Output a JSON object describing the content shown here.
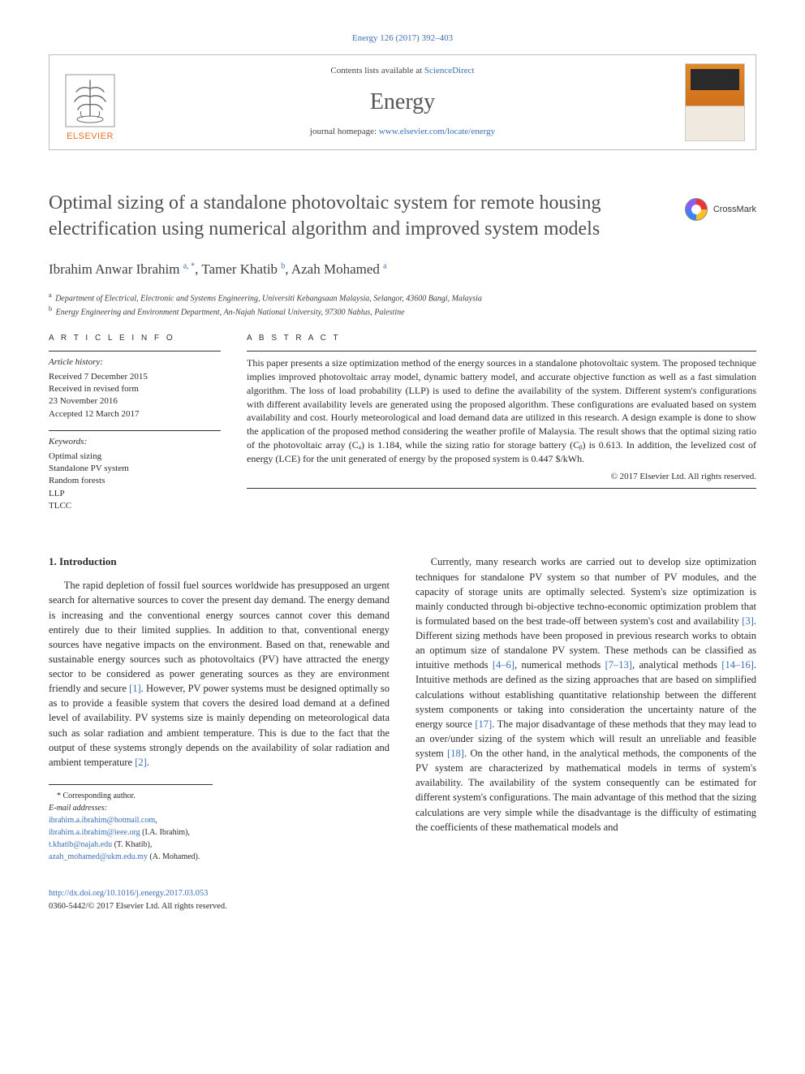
{
  "citation": {
    "text": "Energy 126 (2017) 392–403",
    "url_label": "Energy 126 (2017) 392–403"
  },
  "header": {
    "publisher": "ELSEVIER",
    "contents_prefix": "Contents lists available at ",
    "contents_link": "ScienceDirect",
    "journal": "Energy",
    "homepage_prefix": "journal homepage: ",
    "homepage_url": "www.elsevier.com/locate/energy"
  },
  "crossmark": "CrossMark",
  "title": "Optimal sizing of a standalone photovoltaic system for remote housing electrification using numerical algorithm and improved system models",
  "authors_html": "Ibrahim Anwar Ibrahim <sup>a, *</sup>, Tamer Khatib <sup>b</sup>, Azah Mohamed <sup>a</sup>",
  "affiliations": [
    {
      "sup": "a",
      "text": "Department of Electrical, Electronic and Systems Engineering, Universiti Kebangsaan Malaysia, Selangor, 43600 Bangi, Malaysia"
    },
    {
      "sup": "b",
      "text": "Energy Engineering and Environment Department, An-Najah National University, 97300 Nablus, Palestine"
    }
  ],
  "info": {
    "heading": "A R T I C L E  I N F O",
    "history_head": "Article history:",
    "history": [
      "Received 7 December 2015",
      "Received in revised form",
      "23 November 2016",
      "Accepted 12 March 2017"
    ],
    "keywords_head": "Keywords:",
    "keywords": [
      "Optimal sizing",
      "Standalone PV system",
      "Random forests",
      "LLP",
      "TLCC"
    ]
  },
  "abstract": {
    "heading": "A B S T R A C T",
    "text": "This paper presents a size optimization method of the energy sources in a standalone photovoltaic system. The proposed technique implies improved photovoltaic array model, dynamic battery model, and accurate objective function as well as a fast simulation algorithm. The loss of load probability (LLP) is used to define the availability of the system. Different system's configurations with different availability levels are generated using the proposed algorithm. These configurations are evaluated based on system availability and cost. Hourly meteorological and load demand data are utilized in this research. A design example is done to show the application of the proposed method considering the weather profile of Malaysia. The result shows that the optimal sizing ratio of the photovoltaic array (Cₐ) is 1.184, while the sizing ratio for storage battery (Cᵦ) is 0.613. In addition, the levelized cost of energy (LCE) for the unit generated of energy by the proposed system is 0.447 $/kWh.",
    "copyright": "© 2017 Elsevier Ltd. All rights reserved."
  },
  "body": {
    "intro_heading": "1. Introduction",
    "col1_p1": "The rapid depletion of fossil fuel sources worldwide has presupposed an urgent search for alternative sources to cover the present day demand. The energy demand is increasing and the conventional energy sources cannot cover this demand entirely due to their limited supplies. In addition to that, conventional energy sources have negative impacts on the environment. Based on that, renewable and sustainable energy sources such as photovoltaics (PV) have attracted the energy sector to be considered as power generating sources as they are environment friendly and secure [1]. However, PV power systems must be designed optimally so as to provide a feasible system that covers the desired load demand at a defined level of availability. PV systems size is mainly depending on meteorological data such as solar radiation and ambient temperature. This is due to the fact that the output of these systems strongly depends on the availability of solar radiation and ambient temperature [2].",
    "col2_p1": "Currently, many research works are carried out to develop size optimization techniques for standalone PV system so that number of PV modules, and the capacity of storage units are optimally selected. System's size optimization is mainly conducted through bi-objective techno-economic optimization problem that is formulated based on the best trade-off between system's cost and availability [3]. Different sizing methods have been proposed in previous research works to obtain an optimum size of standalone PV system. These methods can be classified as intuitive methods [4–6], numerical methods [7–13], analytical methods [14–16]. Intuitive methods are defined as the sizing approaches that are based on simplified calculations without establishing quantitative relationship between the different system components or taking into consideration the uncertainty nature of the energy source [17]. The major disadvantage of these methods that they may lead to an over/under sizing of the system which will result an unreliable and feasible system [18]. On the other hand, in the analytical methods, the components of the PV system are characterized by mathematical models in terms of system's availability. The availability of the system consequently can be estimated for different system's configurations. The main advantage of this method that the sizing calculations are very simple while the disadvantage is the difficulty of estimating the coefficients of these mathematical models and"
  },
  "footnotes": {
    "corr": "* Corresponding author.",
    "email_label": "E-mail addresses:",
    "emails": [
      {
        "addr": "ibrahim.a.ibrahim@hotmail.com",
        "who": ""
      },
      {
        "addr": "ibrahim.a.ibrahim@ieee.org",
        "who": "(I.A. Ibrahim)"
      },
      {
        "addr": "t.khatib@najah.edu",
        "who": "(T. Khatib)"
      },
      {
        "addr": "azah_mohamed@ukm.edu.my",
        "who": "(A. Mohamed)."
      }
    ]
  },
  "bottom": {
    "doi": "http://dx.doi.org/10.1016/j.energy.2017.03.053",
    "issn_line": "0360-5442/© 2017 Elsevier Ltd. All rights reserved."
  },
  "colors": {
    "link": "#3a6fb7",
    "elsevier_orange": "#e9711c",
    "title_gray": "#4f4f4f",
    "rule": "#333333"
  }
}
